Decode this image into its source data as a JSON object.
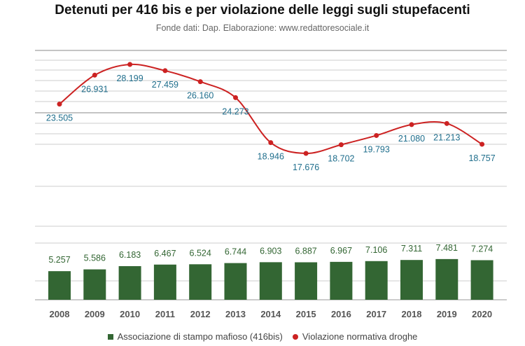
{
  "title": "Detenuti per 416 bis e per violazione delle leggi sugli stupefacenti",
  "subtitle": "Fonde dati: Dap. Elaborazione:  www.redattoresociale.it",
  "colors": {
    "bar": "#336633",
    "bar_label": "#336633",
    "line": "#cc2222",
    "line_label": "#1f6e8c",
    "grid": "#cccccc"
  },
  "chart_data": {
    "type": "bar+line",
    "categories": [
      "2008",
      "2009",
      "2010",
      "2011",
      "2012",
      "2013",
      "2014",
      "2015",
      "2016",
      "2017",
      "2018",
      "2019",
      "2020"
    ],
    "series": [
      {
        "name": "Associazione di stampo mafioso (416bis)",
        "type": "bar",
        "values": [
          5257,
          5586,
          6183,
          6467,
          6524,
          6744,
          6903,
          6887,
          6967,
          7106,
          7311,
          7481,
          7274
        ],
        "labels": [
          "5.257",
          "5.586",
          "6.183",
          "6.467",
          "6.524",
          "6.744",
          "6.903",
          "6.887",
          "6.967",
          "7.106",
          "7.311",
          "7.481",
          "7.274"
        ]
      },
      {
        "name": "Violazione normativa droghe",
        "type": "line",
        "values": [
          23505,
          26931,
          28199,
          27459,
          26160,
          24273,
          18946,
          17676,
          18702,
          19793,
          21080,
          21213,
          18757
        ],
        "labels": [
          "23.505",
          "26.931",
          "28.199",
          "27.459",
          "26.160",
          "24.273",
          "18.946",
          "17.676",
          "18.702",
          "19.793",
          "21.080",
          "21.213",
          "18.757"
        ]
      }
    ],
    "legend_position": "bottom"
  }
}
